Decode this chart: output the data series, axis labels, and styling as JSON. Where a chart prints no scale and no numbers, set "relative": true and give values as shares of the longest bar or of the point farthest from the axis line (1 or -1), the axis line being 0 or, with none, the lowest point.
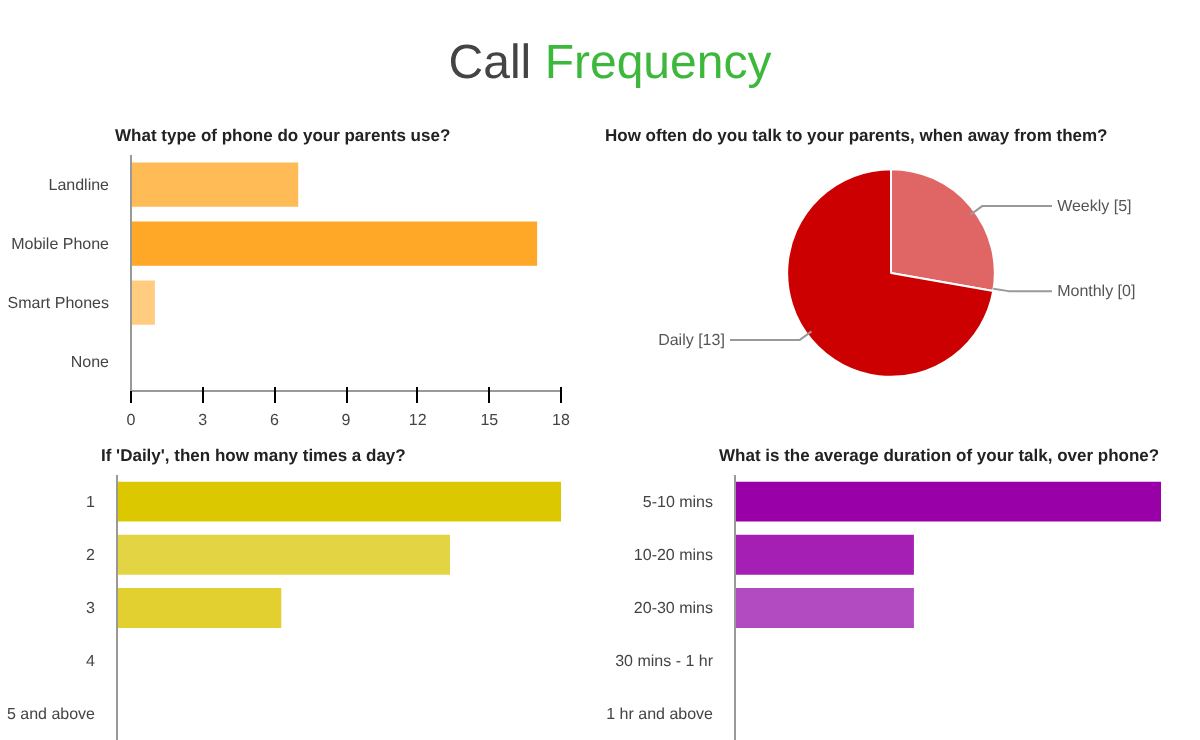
{
  "chart_data": [
    {
      "type": "other",
      "title": "Call Frequency"
    },
    {
      "type": "bar",
      "orientation": "horizontal",
      "title": "What type of phone do your parents use?",
      "categories": [
        "Landline",
        "Mobile Phone",
        "Smart Phones",
        "None"
      ],
      "values": [
        7,
        17,
        1,
        0
      ],
      "colors": [
        "#ffbb55",
        "#ffa726",
        "#ffcc80",
        "#ffcc80"
      ],
      "xlim": [
        0,
        18
      ],
      "xticks": [
        0,
        3,
        6,
        9,
        12,
        15,
        18
      ],
      "grid": false
    },
    {
      "type": "pie",
      "title": "How often do you talk to your parents, when away from them?",
      "categories": [
        "Weekly",
        "Monthly",
        "Daily"
      ],
      "values": [
        5,
        0,
        13
      ],
      "value_labels": [
        "[5]",
        "[0]",
        "[13]"
      ],
      "colors": [
        "#e06666",
        "#ea9999",
        "#cc0000"
      ]
    },
    {
      "type": "bar",
      "orientation": "horizontal",
      "relative": true,
      "title": "If 'Daily', then how many times a day?",
      "categories": [
        "1",
        "2",
        "3",
        "4",
        "5 and above"
      ],
      "values": [
        1,
        0.75,
        0.37,
        0,
        0
      ],
      "colors": [
        "#dcc800",
        "#e3d443",
        "#e2d030",
        "#e2d030",
        "#e2d030"
      ],
      "grid": false
    },
    {
      "type": "bar",
      "orientation": "horizontal",
      "relative": true,
      "title": "What is the average duration of your talk, over phone?",
      "categories": [
        "5-10 mins",
        "10-20 mins",
        "20-30 mins",
        "30 mins - 1 hr",
        "1 hr and above"
      ],
      "values": [
        1,
        0.42,
        0.42,
        0,
        0
      ],
      "colors": [
        "#9a00a8",
        "#a61fb5",
        "#b24ac2",
        "#b24ac2",
        "#b24ac2"
      ],
      "grid": false
    }
  ]
}
